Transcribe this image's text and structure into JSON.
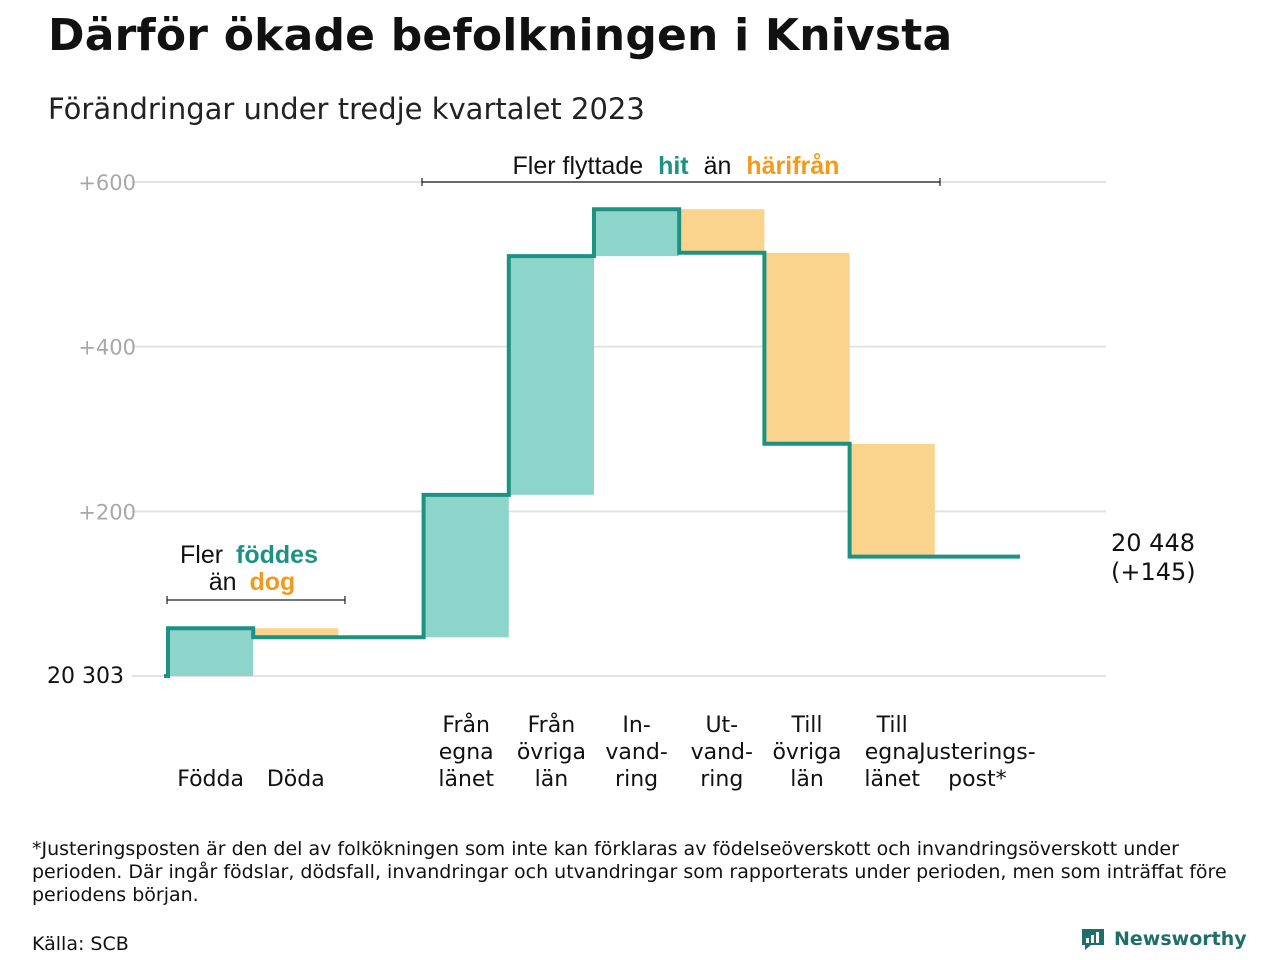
{
  "title": "Därför ökade befolkningen i Knivsta",
  "subtitle": "Förändringar under tredje kvartalet 2023",
  "footnote": "*Justeringsposten är den del av folkökningen som inte kan förklaras av födelseöverskott och invandringsöverskott under perioden. Där ingår födslar, dödsfall, invandringar och utvandringar som rapporterats under perioden, men som inträffat före periodens början.",
  "source": "Källa: SCB",
  "brand": {
    "name": "Newsworthy",
    "icon": "newsworthy-logo-icon"
  },
  "colors": {
    "increase": "#8dd4cb",
    "decrease": "#fad48c",
    "line": "#1c9283",
    "teal_text": "#1c9283",
    "orange_text": "#f29a1b",
    "grid": "#e2e2e2",
    "tick": "#a8a8a8"
  },
  "annotations": {
    "births": {
      "line1_pre": "Fler",
      "line1_hl": "föddes",
      "line2_pre": "än",
      "line2_hl": "dog"
    },
    "migration": {
      "pre": "Fler flyttade",
      "hl1": "hit",
      "mid": "än",
      "hl2": "härifrån"
    }
  },
  "chart_data": {
    "type": "waterfall",
    "start_label": "20  303",
    "start_value": 20303,
    "end_label_line1": "20 448",
    "end_label_line2": "(+145)",
    "end_value": 20448,
    "net_change": 145,
    "y_ticks": [
      {
        "value": 0,
        "label": ""
      },
      {
        "value": 200,
        "label": "+200"
      },
      {
        "value": 400,
        "label": "+400"
      },
      {
        "value": 600,
        "label": "+600"
      }
    ],
    "ylim": [
      0,
      600
    ],
    "categories": [
      {
        "label": [
          "Födda"
        ],
        "value": 58
      },
      {
        "label": [
          "Döda"
        ],
        "value": -11
      },
      {
        "label": [],
        "value": 0
      },
      {
        "label": [
          "Från",
          "egna",
          "länet"
        ],
        "value": 173
      },
      {
        "label": [
          "Från",
          "övriga",
          "län"
        ],
        "value": 290
      },
      {
        "label": [
          "In-",
          "vand-",
          "ring"
        ],
        "value": 57
      },
      {
        "label": [
          "Ut-",
          "vand-",
          "ring"
        ],
        "value": -53
      },
      {
        "label": [
          "Till",
          "övriga",
          "län"
        ],
        "value": -232
      },
      {
        "label": [
          "Till",
          "egna",
          "länet"
        ],
        "value": -137
      },
      {
        "label": [
          "Justerings-",
          "post*"
        ],
        "value": 0
      }
    ]
  }
}
